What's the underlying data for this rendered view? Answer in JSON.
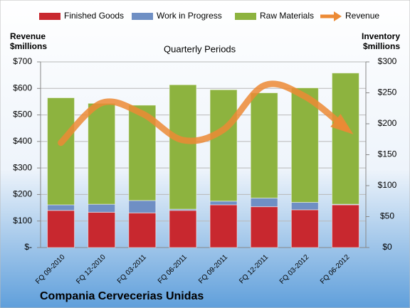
{
  "chart_data": {
    "type": "bar",
    "title": "Quarterly Periods",
    "footer": "Compania Cervecerias Unidas",
    "ylabel": [
      "Revenue",
      "$millions"
    ],
    "y2label": [
      "Inventory",
      "$millions"
    ],
    "categories": [
      "FQ 09-2010",
      "FQ 12-2010",
      "FQ 03-2011",
      "FQ 06-2011",
      "FQ 09-2011",
      "FQ 12-2011",
      "FQ 03-2012",
      "FQ 06-2012"
    ],
    "stacked": true,
    "series": [
      {
        "name": "Finished Goods",
        "color": "#c8282f",
        "axis": "y2",
        "values": [
          60,
          57,
          56,
          60,
          69,
          66,
          61,
          69
        ]
      },
      {
        "name": "Work in Progress",
        "color": "#6f8fc4",
        "axis": "y2",
        "values": [
          9,
          13,
          20,
          2,
          6,
          14,
          12,
          1
        ]
      },
      {
        "name": "Raw Materials",
        "color": "#8db33f",
        "axis": "y2",
        "values": [
          173,
          163,
          154,
          201,
          180,
          170,
          185,
          212
        ]
      },
      {
        "name": "Revenue",
        "color": "#ec8a35",
        "type": "line",
        "values": [
          395,
          545,
          505,
          405,
          445,
          611,
          570,
          450
        ]
      }
    ],
    "ylim": [
      0,
      700
    ],
    "yticks": [
      {
        "value": 0,
        "label": "$-"
      },
      {
        "value": 100,
        "label": "$100"
      },
      {
        "value": 200,
        "label": "$200"
      },
      {
        "value": 300,
        "label": "$300"
      },
      {
        "value": 400,
        "label": "$400"
      },
      {
        "value": 500,
        "label": "$500"
      },
      {
        "value": 600,
        "label": "$600"
      },
      {
        "value": 700,
        "label": "$700"
      }
    ],
    "y2lim": [
      0,
      300
    ],
    "y2ticks": [
      {
        "value": 0,
        "label": "$0"
      },
      {
        "value": 50,
        "label": "$50"
      },
      {
        "value": 100,
        "label": "$100"
      },
      {
        "value": 150,
        "label": "$150"
      },
      {
        "value": 200,
        "label": "$200"
      },
      {
        "value": 250,
        "label": "$250"
      },
      {
        "value": 300,
        "label": "$300"
      }
    ],
    "grid": true
  }
}
